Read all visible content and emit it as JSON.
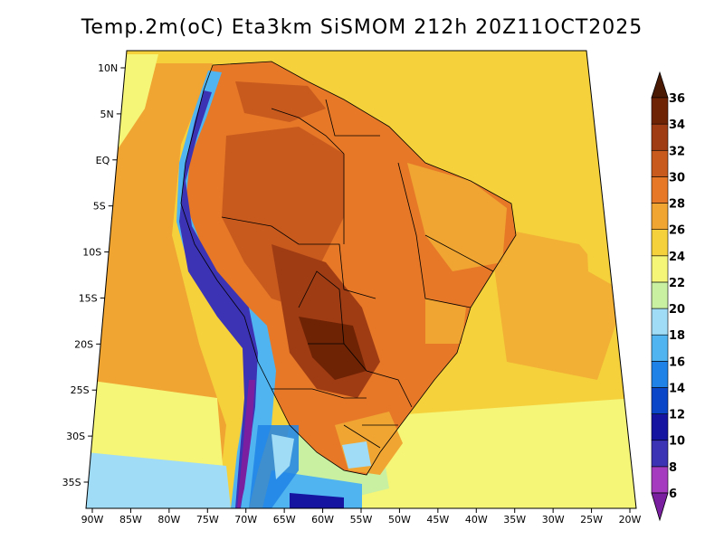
{
  "title": "Temp.2m(oC) Eta3km SiSMOM 212h 20Z11OCT2025",
  "map": {
    "variable": "Temp.2m",
    "units": "oC",
    "model": "Eta3km SiSMOM",
    "lead_time": "212h",
    "valid_time": "20Z11OCT2025",
    "lon_labels": [
      "90W",
      "85W",
      "80W",
      "75W",
      "70W",
      "65W",
      "60W",
      "55W",
      "50W",
      "45W",
      "40W",
      "35W",
      "30W",
      "25W",
      "20W"
    ],
    "lat_labels": [
      "10N",
      "5N",
      "EQ",
      "5S",
      "10S",
      "15S",
      "20S",
      "25S",
      "30S",
      "35S"
    ]
  },
  "colorbar": {
    "levels": [
      "6",
      "8",
      "10",
      "12",
      "14",
      "16",
      "18",
      "20",
      "22",
      "24",
      "26",
      "28",
      "30",
      "32",
      "34",
      "36"
    ],
    "colors": [
      "#7a1fa0",
      "#a53cc0",
      "#3c32b4",
      "#1414a0",
      "#0a46c8",
      "#1e82e6",
      "#50b4f0",
      "#a0dcf5",
      "#c8f0a0",
      "#f5f578",
      "#f5d23c",
      "#f0a532",
      "#e67828",
      "#c85a1e",
      "#a03c14",
      "#6e2305",
      "#4a1a05"
    ]
  }
}
